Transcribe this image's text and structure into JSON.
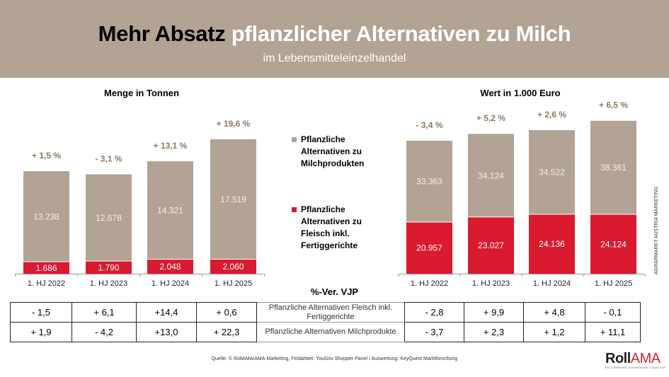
{
  "header": {
    "title_dark": "Mehr Absatz",
    "title_light": "pflanzlicher Alternativen zu Milch",
    "subtitle": "im Lebensmitteleinzelhandel"
  },
  "colors": {
    "milk": "#b3a394",
    "meat": "#d91a2f",
    "pct": "#8c7a66",
    "header_bg": "#b3a394"
  },
  "legend": [
    {
      "label": "Pflanzliche Alternativen zu Milchprodukten",
      "color": "#b3a394"
    },
    {
      "label": "Pflanzliche Alternativen zu Fleisch inkl. Fertiggerichte",
      "color": "#d91a2f"
    }
  ],
  "chart_data": [
    {
      "type": "bar",
      "stacked": true,
      "title": "Menge in Tonnen",
      "categories": [
        "1. HJ 2022",
        "1. HJ 2023",
        "1. HJ 2024",
        "1. HJ 2025"
      ],
      "series": [
        {
          "name": "Pflanzliche Alternativen zu Fleisch inkl. Fertiggerichte",
          "values": [
            1686,
            1790,
            2048,
            2060
          ],
          "labels": [
            "1.686",
            "1.790",
            "2.048",
            "2.060"
          ]
        },
        {
          "name": "Pflanzliche Alternativen zu Milchprodukten",
          "values": [
            13238,
            12678,
            14321,
            17519
          ],
          "labels": [
            "13.238",
            "12.678",
            "14.321",
            "17.519"
          ]
        }
      ],
      "annotations": [
        "+ 1,5 %",
        "- 3,1 %",
        "+ 13,1 %",
        "+ 19,6 %"
      ],
      "ylim": [
        0,
        20000
      ]
    },
    {
      "type": "bar",
      "stacked": true,
      "title": "Wert in 1.000 Euro",
      "categories": [
        "1. HJ 2022",
        "1. HJ 2023",
        "1. HJ 2024",
        "1. HJ 2025"
      ],
      "series": [
        {
          "name": "Pflanzliche Alternativen zu Fleisch inkl. Fertiggerichte",
          "values": [
            20957,
            23027,
            24136,
            24124
          ],
          "labels": [
            "20.957",
            "23.027",
            "24.136",
            "24.124"
          ]
        },
        {
          "name": "Pflanzliche Alternativen zu Milchprodukten",
          "values": [
            33363,
            34124,
            34522,
            38361
          ],
          "labels": [
            "33.363",
            "34.124",
            "34.522",
            "38.361"
          ]
        }
      ],
      "annotations": [
        "- 3,4 %",
        "+ 5,2 %",
        "+ 2,6 %",
        "+ 6,5 %"
      ],
      "ylim": [
        0,
        64000
      ]
    }
  ],
  "vjp": {
    "title": "%-Ver. VJP",
    "rows": [
      {
        "left": [
          "- 1,5",
          "+ 6,1",
          "+14,4",
          "+ 0,6"
        ],
        "label": "Pflanzliche Alternativen Fleisch inkl. Fertiggerichte",
        "right": [
          "- 2,8",
          "+ 9,9",
          "+ 4,8",
          "- 0,1"
        ]
      },
      {
        "left": [
          "+ 1,9",
          "- 4,2",
          "+13,0",
          "+ 22,3"
        ],
        "label": "Pflanzliche Alternativen Milchprodukte",
        "right": [
          "- 3,7",
          "+ 2,3",
          "+ 1,2",
          "+ 11,1"
        ]
      }
    ]
  },
  "source": "Quelle: © RollAMA/AMA-Marketing, Feldarbeit: YouGov Shopper Panel / Auswertung: KeyQuest Marktforschung",
  "side_text": "AGRARMARKT AUSTRIA MARKETING",
  "logo": {
    "roll": "Roll",
    "ama": "AMA",
    "tagline": "ROLLIERENDE AGRARMARKT ANALYSE"
  }
}
